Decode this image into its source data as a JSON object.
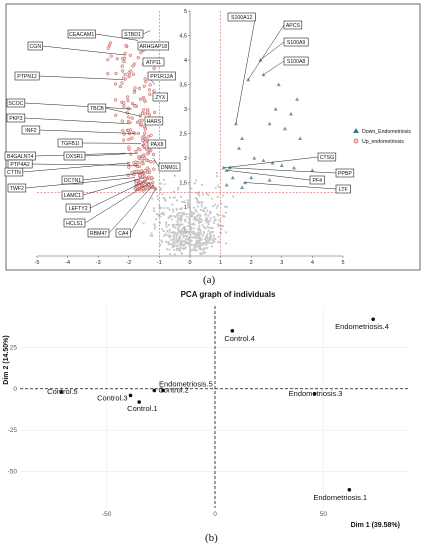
{
  "panel_a_label": "(a)",
  "panel_b_label": "(b)",
  "chart_data": [
    {
      "type": "scatter",
      "title": "",
      "xlabel": "",
      "ylabel": "",
      "xlim": [
        -5,
        5
      ],
      "ylim": [
        0,
        5
      ],
      "x_ticks": [
        "-5",
        "-4",
        "-3",
        "-2",
        "-1",
        "0",
        "1",
        "2",
        "3",
        "4",
        "5"
      ],
      "y_ticks": [
        "0,5",
        "1",
        "1,5",
        "2",
        "2,5",
        "3",
        "3,5",
        "4",
        "4,5",
        "5"
      ],
      "thresholds": {
        "x": [
          -1,
          1
        ],
        "y": 1.3
      },
      "legend_position": "right",
      "legend": [
        {
          "name": "Down_Endometriosis",
          "color": "#3b7a8c",
          "marker": "triangle"
        },
        {
          "name": "Up_endometriosis",
          "color": "#c0504d",
          "marker": "circle"
        }
      ],
      "background_color": "#c8c8c8",
      "labeled_genes_left": [
        {
          "name": "CEACAM1",
          "x": -1.7,
          "y": 4.4
        },
        {
          "name": "STBD1",
          "x": -1.3,
          "y": 4.6
        },
        {
          "name": "CGN",
          "x": -2.1,
          "y": 4.1
        },
        {
          "name": "ARHGAP18",
          "x": -1.2,
          "y": 4.2
        },
        {
          "name": "ATP11",
          "x": -1.1,
          "y": 3.9
        },
        {
          "name": "PTPN12",
          "x": -2.2,
          "y": 3.6
        },
        {
          "name": "PP1R12A",
          "x": -1.15,
          "y": 3.5
        },
        {
          "name": "ZYX",
          "x": -1.2,
          "y": 3.2
        },
        {
          "name": "SCOC",
          "x": -1.9,
          "y": 3.0
        },
        {
          "name": "TBCB",
          "x": -1.6,
          "y": 2.85
        },
        {
          "name": "HARS",
          "x": -1.3,
          "y": 2.8
        },
        {
          "name": "PKP3",
          "x": -2.0,
          "y": 2.7
        },
        {
          "name": "INF2",
          "x": -1.8,
          "y": 2.5
        },
        {
          "name": "TGFB1I",
          "x": -1.6,
          "y": 2.3
        },
        {
          "name": "PAX8",
          "x": -1.3,
          "y": 2.3
        },
        {
          "name": "B4GALNT4",
          "x": -2.1,
          "y": 2.1
        },
        {
          "name": "OXSR1",
          "x": -1.7,
          "y": 2.1
        },
        {
          "name": "DNM1L",
          "x": -1.2,
          "y": 2.0
        },
        {
          "name": "CTTN",
          "x": -2.0,
          "y": 1.9
        },
        {
          "name": "PTP4A2",
          "x": -1.7,
          "y": 1.85
        },
        {
          "name": "DCTN1",
          "x": -1.5,
          "y": 1.7
        },
        {
          "name": "TWF2",
          "x": -1.8,
          "y": 1.6
        },
        {
          "name": "LAMC1",
          "x": -1.5,
          "y": 1.6
        },
        {
          "name": "LEFTY2",
          "x": -1.4,
          "y": 1.55
        },
        {
          "name": "HCLS1",
          "x": -1.3,
          "y": 1.5
        },
        {
          "name": "RBM47",
          "x": -1.2,
          "y": 1.45
        },
        {
          "name": "CA4",
          "x": -1.1,
          "y": 1.4
        }
      ],
      "labeled_genes_right": [
        {
          "name": "S100A12",
          "x": 1.5,
          "y": 2.7
        },
        {
          "name": "APCS",
          "x": 1.9,
          "y": 3.6
        },
        {
          "name": "S100A9",
          "x": 2.3,
          "y": 4.0
        },
        {
          "name": "S100A8",
          "x": 2.4,
          "y": 3.7
        },
        {
          "name": "CTSG",
          "x": 1.1,
          "y": 1.8
        },
        {
          "name": "PPBP",
          "x": 1.3,
          "y": 1.8
        },
        {
          "name": "PF4",
          "x": 1.2,
          "y": 1.75
        },
        {
          "name": "LTF",
          "x": 1.8,
          "y": 1.5
        }
      ]
    },
    {
      "type": "scatter",
      "title": "PCA graph of individuals",
      "xlabel": "Dim 1 (39.58%)",
      "ylabel": "Dim 2 (14.50%)",
      "x_ticks": [
        -50,
        0,
        50
      ],
      "y_ticks": [
        -50,
        -25,
        0,
        25
      ],
      "xlim": [
        -90,
        90
      ],
      "ylim": [
        -72,
        50
      ],
      "grid": true,
      "points": [
        {
          "name": "Control.5",
          "x": -71,
          "y": -2
        },
        {
          "name": "Control.3",
          "x": -39,
          "y": -4
        },
        {
          "name": "Control.1",
          "x": -35,
          "y": -8
        },
        {
          "name": "Control.2",
          "x": -28,
          "y": -1
        },
        {
          "name": "Endometriosis.5",
          "x": -24,
          "y": -1
        },
        {
          "name": "Control.4",
          "x": 8,
          "y": 35
        },
        {
          "name": "Endometriosis.4",
          "x": 73,
          "y": 42
        },
        {
          "name": "Endometriosis.3",
          "x": 46,
          "y": -3
        },
        {
          "name": "Endometriosis.1",
          "x": 62,
          "y": -61
        }
      ]
    }
  ]
}
